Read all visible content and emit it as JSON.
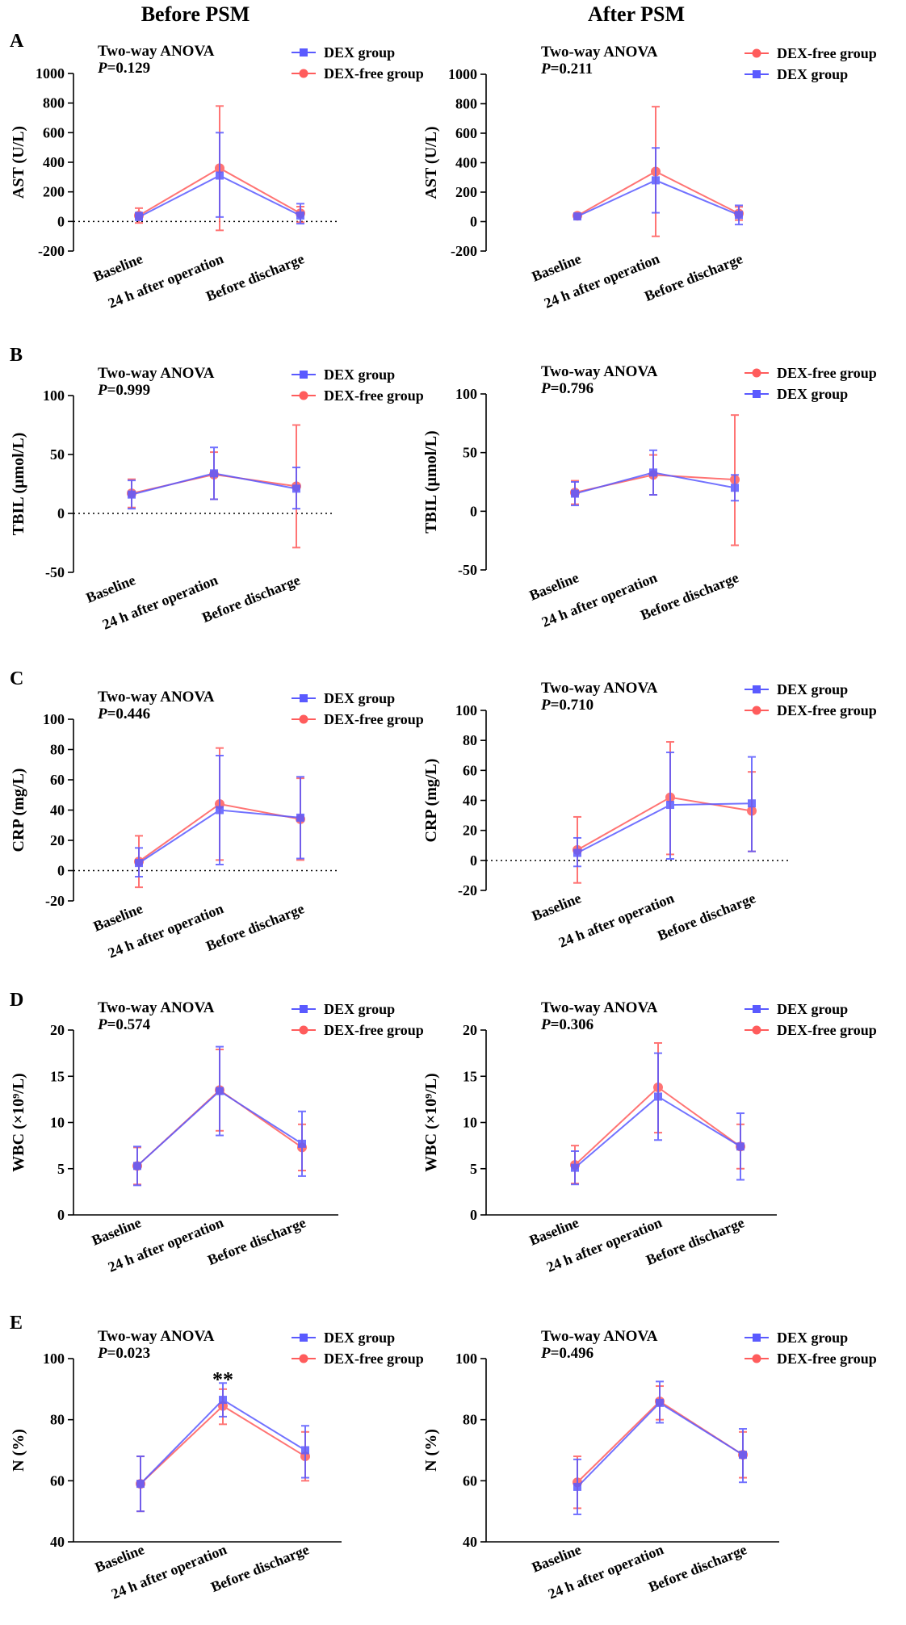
{
  "colors": {
    "dex": "#5a5aff",
    "dexfree": "#ff5c5c",
    "axis": "#000000"
  },
  "column_titles": {
    "left": "Before PSM",
    "right": "After PSM"
  },
  "panel_letters": [
    "A",
    "B",
    "C",
    "D",
    "E"
  ],
  "stats_label": "Two-way ANOVA",
  "categories": [
    "Baseline",
    "24 h after operation",
    "Before discharge"
  ],
  "chart_data": [
    {
      "id": "A-left",
      "type": "line",
      "panel": "A",
      "column": "left",
      "ylabel": "AST (U/L)",
      "ylim": [
        -200,
        1000
      ],
      "yticks": [
        -200,
        0,
        200,
        400,
        600,
        800,
        1000
      ],
      "zero_line": true,
      "p_value": "=0.129",
      "legend_order": [
        "dex",
        "dexfree"
      ],
      "legend": {
        "dex": "DEX group",
        "dexfree": "DEX-free group"
      },
      "annotation": "",
      "series": [
        {
          "key": "dex",
          "name": "DEX group",
          "values": [
            30,
            310,
            40
          ],
          "err_low": [
            10,
            30,
            -15
          ],
          "err_high": [
            60,
            600,
            120
          ]
        },
        {
          "key": "dexfree",
          "name": "DEX-free group",
          "values": [
            40,
            360,
            55
          ],
          "err_low": [
            -10,
            -60,
            -5
          ],
          "err_high": [
            90,
            780,
            100
          ]
        }
      ]
    },
    {
      "id": "A-right",
      "type": "line",
      "panel": "A",
      "column": "right",
      "ylabel": "AST (U/L)",
      "ylim": [
        -200,
        1000
      ],
      "yticks": [
        -200,
        0,
        200,
        400,
        600,
        800,
        1000
      ],
      "zero_line": false,
      "p_value": "=0.211",
      "legend_order": [
        "dexfree",
        "dex"
      ],
      "legend": {
        "dex": "DEX group",
        "dexfree": "DEX-free group"
      },
      "annotation": "",
      "series": [
        {
          "key": "dex",
          "name": "DEX group",
          "values": [
            35,
            280,
            45
          ],
          "err_low": [
            20,
            60,
            -20
          ],
          "err_high": [
            50,
            500,
            110
          ]
        },
        {
          "key": "dexfree",
          "name": "DEX-free group",
          "values": [
            40,
            340,
            55
          ],
          "err_low": [
            25,
            -100,
            10
          ],
          "err_high": [
            55,
            780,
            100
          ]
        }
      ]
    },
    {
      "id": "B-left",
      "type": "line",
      "panel": "B",
      "column": "left",
      "ylabel": "TBIL (μmol/L)",
      "ylim": [
        -50,
        100
      ],
      "yticks": [
        -50,
        0,
        50,
        100
      ],
      "zero_line": true,
      "p_value": "=0.999",
      "legend_order": [
        "dex",
        "dexfree"
      ],
      "legend": {
        "dex": "DEX group",
        "dexfree": "DEX-free group"
      },
      "annotation": "",
      "series": [
        {
          "key": "dex",
          "name": "DEX group",
          "values": [
            16,
            34,
            21
          ],
          "err_low": [
            4,
            12,
            4
          ],
          "err_high": [
            28,
            56,
            39
          ]
        },
        {
          "key": "dexfree",
          "name": "DEX-free group",
          "values": [
            17,
            33,
            23
          ],
          "err_low": [
            5,
            12,
            -29
          ],
          "err_high": [
            29,
            52,
            75
          ]
        }
      ]
    },
    {
      "id": "B-right",
      "type": "line",
      "panel": "B",
      "column": "right",
      "ylabel": "TBIL (μmol/L)",
      "ylim": [
        -50,
        100
      ],
      "yticks": [
        -50,
        0,
        50,
        100
      ],
      "zero_line": false,
      "p_value": "=0.796",
      "legend_order": [
        "dexfree",
        "dex"
      ],
      "legend": {
        "dex": "DEX group",
        "dexfree": "DEX-free group"
      },
      "annotation": "",
      "series": [
        {
          "key": "dex",
          "name": "DEX group",
          "values": [
            15,
            33,
            20
          ],
          "err_low": [
            5,
            14,
            9
          ],
          "err_high": [
            25,
            52,
            31
          ]
        },
        {
          "key": "dexfree",
          "name": "DEX-free group",
          "values": [
            16,
            31,
            27
          ],
          "err_low": [
            6,
            14,
            -29
          ],
          "err_high": [
            26,
            48,
            82
          ]
        }
      ]
    },
    {
      "id": "C-left",
      "type": "line",
      "panel": "C",
      "column": "left",
      "ylabel": "CRP (mg/L)",
      "ylim": [
        -20,
        100
      ],
      "yticks": [
        -20,
        0,
        20,
        40,
        60,
        80,
        100
      ],
      "zero_line": true,
      "p_value": "=0.446",
      "legend_order": [
        "dex",
        "dexfree"
      ],
      "legend": {
        "dex": "DEX group",
        "dexfree": "DEX-free group"
      },
      "annotation": "",
      "series": [
        {
          "key": "dex",
          "name": "DEX group",
          "values": [
            5,
            40,
            35
          ],
          "err_low": [
            -4,
            4,
            8
          ],
          "err_high": [
            15,
            76,
            62
          ]
        },
        {
          "key": "dexfree",
          "name": "DEX-free group",
          "values": [
            6,
            44,
            34
          ],
          "err_low": [
            -11,
            7,
            7
          ],
          "err_high": [
            23,
            81,
            61
          ]
        }
      ]
    },
    {
      "id": "C-right",
      "type": "line",
      "panel": "C",
      "column": "right",
      "ylabel": "CRP (mg/L)",
      "ylim": [
        -20,
        100
      ],
      "yticks": [
        -20,
        0,
        20,
        40,
        60,
        80,
        100
      ],
      "zero_line": true,
      "p_value": "=0.710",
      "legend_order": [
        "dex",
        "dexfree"
      ],
      "legend": {
        "dex": "DEX group",
        "dexfree": "DEX-free group"
      },
      "annotation": "",
      "series": [
        {
          "key": "dex",
          "name": "DEX group",
          "values": [
            5,
            37,
            38
          ],
          "err_low": [
            -4,
            1,
            6
          ],
          "err_high": [
            15,
            72,
            69
          ]
        },
        {
          "key": "dexfree",
          "name": "DEX-free group",
          "values": [
            7,
            42,
            33
          ],
          "err_low": [
            -15,
            4,
            6
          ],
          "err_high": [
            29,
            79,
            59
          ]
        }
      ]
    },
    {
      "id": "D-left",
      "type": "line",
      "panel": "D",
      "column": "left",
      "ylabel": "WBC (×10⁹/L)",
      "ylim": [
        0,
        20
      ],
      "yticks": [
        0,
        5,
        10,
        15,
        20
      ],
      "zero_line": false,
      "p_value": "=0.574",
      "legend_order": [
        "dex",
        "dexfree"
      ],
      "legend": {
        "dex": "DEX group",
        "dexfree": "DEX-free group"
      },
      "annotation": "",
      "series": [
        {
          "key": "dex",
          "name": "DEX group",
          "values": [
            5.3,
            13.4,
            7.7
          ],
          "err_low": [
            3.2,
            8.6,
            4.2
          ],
          "err_high": [
            7.4,
            18.2,
            11.2
          ]
        },
        {
          "key": "dexfree",
          "name": "DEX-free group",
          "values": [
            5.3,
            13.5,
            7.3
          ],
          "err_low": [
            3.3,
            9.1,
            4.8
          ],
          "err_high": [
            7.3,
            17.9,
            9.8
          ]
        }
      ]
    },
    {
      "id": "D-right",
      "type": "line",
      "panel": "D",
      "column": "right",
      "ylabel": "WBC (×10⁹/L)",
      "ylim": [
        0,
        20
      ],
      "yticks": [
        0,
        5,
        10,
        15,
        20
      ],
      "zero_line": false,
      "p_value": "=0.306",
      "legend_order": [
        "dex",
        "dexfree"
      ],
      "legend": {
        "dex": "DEX group",
        "dexfree": "DEX-free group"
      },
      "annotation": "",
      "series": [
        {
          "key": "dex",
          "name": "DEX group",
          "values": [
            5.1,
            12.8,
            7.4
          ],
          "err_low": [
            3.3,
            8.1,
            3.8
          ],
          "err_high": [
            6.9,
            17.5,
            11.0
          ]
        },
        {
          "key": "dexfree",
          "name": "DEX-free group",
          "values": [
            5.4,
            13.8,
            7.4
          ],
          "err_low": [
            3.4,
            8.9,
            5.0
          ],
          "err_high": [
            7.5,
            18.6,
            9.8
          ]
        }
      ]
    },
    {
      "id": "E-left",
      "type": "line",
      "panel": "E",
      "column": "left",
      "ylabel": "N (%)",
      "ylim": [
        40,
        100
      ],
      "yticks": [
        40,
        60,
        80,
        100
      ],
      "zero_line": false,
      "p_value": "=0.023",
      "legend_order": [
        "dex",
        "dexfree"
      ],
      "legend": {
        "dex": "DEX group",
        "dexfree": "DEX-free group"
      },
      "annotation": "**",
      "series": [
        {
          "key": "dex",
          "name": "DEX group",
          "values": [
            59,
            86.5,
            70
          ],
          "err_low": [
            50,
            81,
            61
          ],
          "err_high": [
            68,
            92,
            78
          ]
        },
        {
          "key": "dexfree",
          "name": "DEX-free group",
          "values": [
            59,
            84.5,
            68
          ],
          "err_low": [
            50,
            78.5,
            60
          ],
          "err_high": [
            68,
            90,
            76
          ]
        }
      ]
    },
    {
      "id": "E-right",
      "type": "line",
      "panel": "E",
      "column": "right",
      "ylabel": "N (%)",
      "ylim": [
        40,
        100
      ],
      "yticks": [
        40,
        60,
        80,
        100
      ],
      "zero_line": false,
      "p_value": "=0.496",
      "legend_order": [
        "dex",
        "dexfree"
      ],
      "legend": {
        "dex": "DEX group",
        "dexfree": "DEX-free group"
      },
      "annotation": "",
      "series": [
        {
          "key": "dex",
          "name": "DEX group",
          "values": [
            58,
            85.5,
            68.5
          ],
          "err_low": [
            49,
            79,
            59.5
          ],
          "err_high": [
            67,
            92.5,
            77
          ]
        },
        {
          "key": "dexfree",
          "name": "DEX-free group",
          "values": [
            59.5,
            86,
            68.5
          ],
          "err_low": [
            51,
            80,
            61
          ],
          "err_high": [
            68,
            91,
            76
          ]
        }
      ]
    }
  ]
}
